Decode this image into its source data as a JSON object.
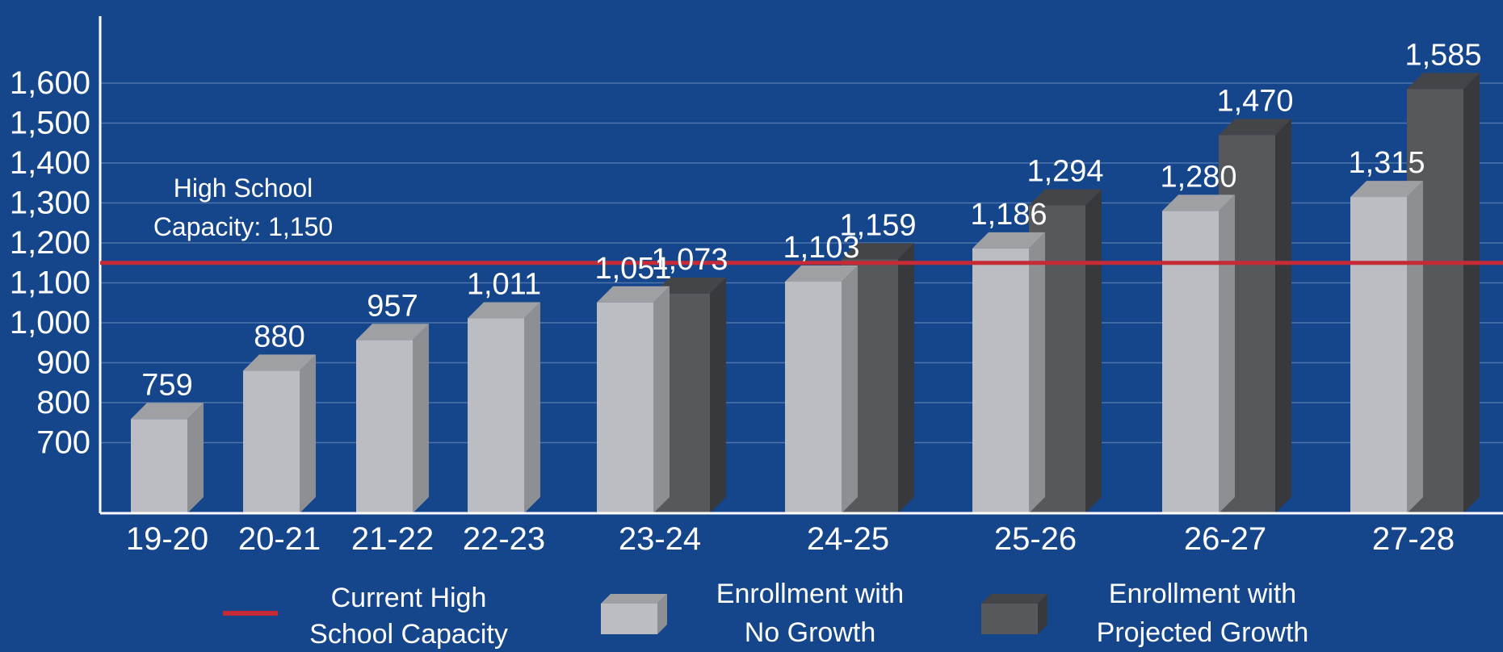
{
  "colors": {
    "background": "#15468c",
    "no_growth": "#bcbdc2",
    "no_growth_side": "#8e8f93",
    "no_growth_top": "#9fa0a4",
    "projected": "#57585b",
    "projected_side": "#38393c",
    "projected_top": "#444548",
    "capacity_line": "#c62a36",
    "grid": "#4f74aa",
    "text": "#ffffff"
  },
  "chart_data": {
    "type": "bar",
    "categories": [
      "19-20",
      "20-21",
      "21-22",
      "22-23",
      "23-24",
      "24-25",
      "25-26",
      "26-27",
      "27-28"
    ],
    "series": [
      {
        "name": "Enrollment with No Growth",
        "values": [
          759,
          880,
          957,
          1011,
          1051,
          1103,
          1186,
          1280,
          1315
        ],
        "labels": [
          "759",
          "880",
          "957",
          "1,011",
          "1,051",
          "1,103",
          "1,186",
          "1,280",
          "1,315"
        ]
      },
      {
        "name": "Enrollment with Projected Growth",
        "values": [
          null,
          null,
          null,
          null,
          1073,
          1159,
          1294,
          1470,
          1585
        ],
        "labels": [
          null,
          null,
          null,
          null,
          "1,073",
          "1,159",
          "1,294",
          "1,470",
          "1,585"
        ]
      }
    ],
    "reference_line": {
      "name": "Current High School Capacity",
      "value": 1150,
      "label_lines": [
        "High School",
        "Capacity: 1,150"
      ]
    },
    "y_ticks": [
      700,
      800,
      900,
      1000,
      1100,
      1200,
      1300,
      1400,
      1500,
      1600
    ],
    "y_tick_labels": [
      "700",
      "800",
      "900",
      "1,000",
      "1,100",
      "1,200",
      "1,300",
      "1,400",
      "1,500",
      "1,600"
    ],
    "ylim": [
      620,
      1650
    ],
    "grid": true,
    "legend_position": "bottom",
    "legend": [
      {
        "key": "capacity",
        "lines": [
          "Current High",
          "School Capacity"
        ]
      },
      {
        "key": "no_growth",
        "lines": [
          "Enrollment with",
          "No Growth"
        ]
      },
      {
        "key": "projected",
        "lines": [
          "Enrollment with",
          "Projected Growth"
        ]
      }
    ]
  }
}
